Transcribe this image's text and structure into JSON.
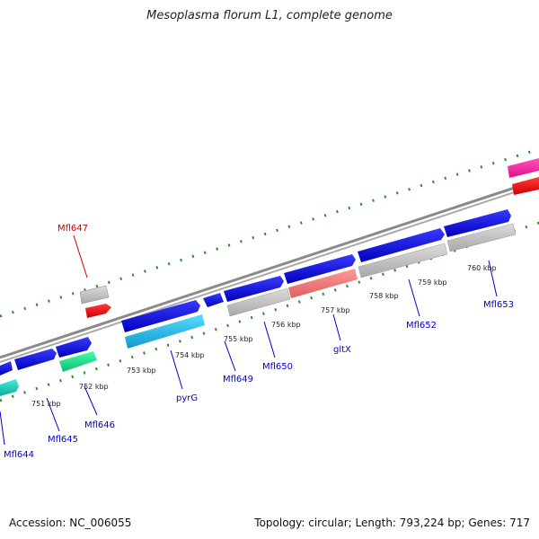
{
  "title": "Mesoplasma florum L1, complete genome",
  "footer": {
    "accession": "Accession: NC_006055",
    "summary": "Topology: circular; Length: 793,224 bp; Genes: 717"
  },
  "colors": {
    "backbone": "#8a8a8a",
    "tick": "#2e8b2e",
    "label_blue": "#0000cc",
    "label_red": "#cc0000",
    "cds_blue": "#1a1aee",
    "cds_gray": "#c4c4c4",
    "cds_red": "#ff1a1a",
    "cds_cyan": "#33ccff",
    "cds_teal": "#22ddcc",
    "cds_green": "#22ee99",
    "cds_salmon": "#f08080",
    "cds_magenta": "#ff33aa"
  },
  "kbp_labels": [
    "751 kbp",
    "752 kbp",
    "753 kbp",
    "754 kbp",
    "755 kbp",
    "756 kbp",
    "757 kbp",
    "758 kbp",
    "759 kbp",
    "760 kbp"
  ],
  "gene_labels": [
    "Mfl644",
    "Mfl645",
    "Mfl646",
    "Mfl647",
    "pyrG",
    "Mfl649",
    "Mfl650",
    "gltX",
    "Mfl652",
    "Mfl653"
  ]
}
